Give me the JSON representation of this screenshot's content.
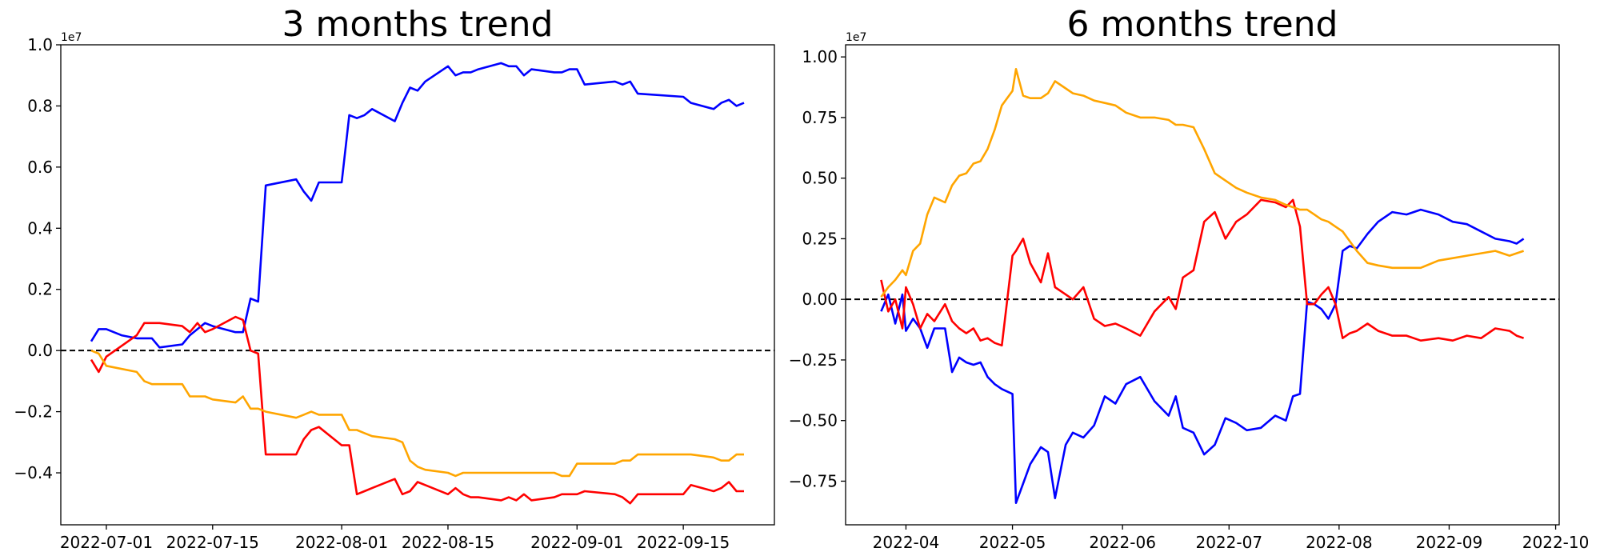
{
  "colors": {
    "series_1": "#0000ff",
    "series_2": "#ff0000",
    "series_3": "#ffa500",
    "zero_line": "#000000"
  },
  "chart_data": [
    {
      "type": "line",
      "title": "3 months trend",
      "xlabel": "",
      "ylabel": "",
      "y_offset_label": "1e7",
      "xlim": [
        "2022-06-25",
        "2022-09-27"
      ],
      "ylim": [
        -0.57,
        1.0
      ],
      "x_ticks": [
        "2022-07-01",
        "2022-07-15",
        "2022-08-01",
        "2022-08-15",
        "2022-09-01",
        "2022-09-15"
      ],
      "y_ticks": [
        -0.4,
        -0.2,
        0.0,
        0.2,
        0.4,
        0.6,
        0.8,
        1.0
      ],
      "y_tick_labels": [
        "−0.4",
        "−0.2",
        "0.0",
        "0.2",
        "0.4",
        "0.6",
        "0.8",
        "1.0"
      ],
      "zero_line": true,
      "grid": false,
      "series": [
        {
          "color": "blue",
          "x": [
            "2022-06-29",
            "2022-06-30",
            "2022-07-01",
            "2022-07-03",
            "2022-07-05",
            "2022-07-06",
            "2022-07-07",
            "2022-07-08",
            "2022-07-11",
            "2022-07-12",
            "2022-07-13",
            "2022-07-14",
            "2022-07-15",
            "2022-07-18",
            "2022-07-19",
            "2022-07-20",
            "2022-07-21",
            "2022-07-22",
            "2022-07-26",
            "2022-07-27",
            "2022-07-28",
            "2022-07-29",
            "2022-08-01",
            "2022-08-02",
            "2022-08-03",
            "2022-08-04",
            "2022-08-05",
            "2022-08-08",
            "2022-08-09",
            "2022-08-10",
            "2022-08-11",
            "2022-08-12",
            "2022-08-15",
            "2022-08-16",
            "2022-08-17",
            "2022-08-18",
            "2022-08-19",
            "2022-08-22",
            "2022-08-23",
            "2022-08-24",
            "2022-08-25",
            "2022-08-26",
            "2022-08-29",
            "2022-08-30",
            "2022-08-31",
            "2022-09-01",
            "2022-09-02",
            "2022-09-06",
            "2022-09-07",
            "2022-09-08",
            "2022-09-09",
            "2022-09-15",
            "2022-09-16",
            "2022-09-19",
            "2022-09-20",
            "2022-09-21",
            "2022-09-22",
            "2022-09-23"
          ],
          "values": [
            0.03,
            0.07,
            0.07,
            0.05,
            0.04,
            0.04,
            0.04,
            0.01,
            0.02,
            0.05,
            0.07,
            0.09,
            0.08,
            0.06,
            0.06,
            0.17,
            0.16,
            0.54,
            0.56,
            0.52,
            0.49,
            0.55,
            0.55,
            0.77,
            0.76,
            0.77,
            0.79,
            0.75,
            0.81,
            0.86,
            0.85,
            0.88,
            0.93,
            0.9,
            0.91,
            0.91,
            0.92,
            0.94,
            0.93,
            0.93,
            0.9,
            0.92,
            0.91,
            0.91,
            0.92,
            0.92,
            0.87,
            0.88,
            0.87,
            0.88,
            0.84,
            0.83,
            0.81,
            0.79,
            0.81,
            0.82,
            0.8,
            0.81
          ]
        },
        {
          "color": "red",
          "x": [
            "2022-06-29",
            "2022-06-30",
            "2022-07-01",
            "2022-07-05",
            "2022-07-06",
            "2022-07-07",
            "2022-07-08",
            "2022-07-11",
            "2022-07-12",
            "2022-07-13",
            "2022-07-14",
            "2022-07-15",
            "2022-07-18",
            "2022-07-19",
            "2022-07-20",
            "2022-07-21",
            "2022-07-22",
            "2022-07-26",
            "2022-07-27",
            "2022-07-28",
            "2022-07-29",
            "2022-08-01",
            "2022-08-02",
            "2022-08-03",
            "2022-08-04",
            "2022-08-05",
            "2022-08-08",
            "2022-08-09",
            "2022-08-10",
            "2022-08-11",
            "2022-08-12",
            "2022-08-15",
            "2022-08-16",
            "2022-08-17",
            "2022-08-18",
            "2022-08-19",
            "2022-08-22",
            "2022-08-23",
            "2022-08-24",
            "2022-08-25",
            "2022-08-26",
            "2022-08-29",
            "2022-08-30",
            "2022-08-31",
            "2022-09-01",
            "2022-09-02",
            "2022-09-06",
            "2022-09-07",
            "2022-09-08",
            "2022-09-09",
            "2022-09-15",
            "2022-09-16",
            "2022-09-19",
            "2022-09-20",
            "2022-09-21",
            "2022-09-22",
            "2022-09-23"
          ],
          "values": [
            -0.03,
            -0.07,
            -0.02,
            0.05,
            0.09,
            0.09,
            0.09,
            0.08,
            0.06,
            0.09,
            0.06,
            0.07,
            0.11,
            0.1,
            0.0,
            -0.01,
            -0.34,
            -0.34,
            -0.29,
            -0.26,
            -0.25,
            -0.31,
            -0.31,
            -0.47,
            -0.46,
            -0.45,
            -0.42,
            -0.47,
            -0.46,
            -0.43,
            -0.44,
            -0.47,
            -0.45,
            -0.47,
            -0.48,
            -0.48,
            -0.49,
            -0.48,
            -0.49,
            -0.47,
            -0.49,
            -0.48,
            -0.47,
            -0.47,
            -0.47,
            -0.46,
            -0.47,
            -0.48,
            -0.5,
            -0.47,
            -0.47,
            -0.44,
            -0.46,
            -0.45,
            -0.43,
            -0.46,
            -0.46
          ]
        },
        {
          "color": "orange",
          "x": [
            "2022-06-29",
            "2022-06-30",
            "2022-07-01",
            "2022-07-05",
            "2022-07-06",
            "2022-07-07",
            "2022-07-08",
            "2022-07-11",
            "2022-07-12",
            "2022-07-13",
            "2022-07-14",
            "2022-07-15",
            "2022-07-18",
            "2022-07-19",
            "2022-07-20",
            "2022-07-21",
            "2022-07-22",
            "2022-07-26",
            "2022-07-27",
            "2022-07-28",
            "2022-07-29",
            "2022-08-01",
            "2022-08-02",
            "2022-08-03",
            "2022-08-04",
            "2022-08-05",
            "2022-08-08",
            "2022-08-09",
            "2022-08-10",
            "2022-08-11",
            "2022-08-12",
            "2022-08-15",
            "2022-08-16",
            "2022-08-17",
            "2022-08-18",
            "2022-08-19",
            "2022-08-22",
            "2022-08-23",
            "2022-08-24",
            "2022-08-25",
            "2022-08-26",
            "2022-08-29",
            "2022-08-30",
            "2022-08-31",
            "2022-09-01",
            "2022-09-02",
            "2022-09-06",
            "2022-09-07",
            "2022-09-08",
            "2022-09-09",
            "2022-09-15",
            "2022-09-16",
            "2022-09-19",
            "2022-09-20",
            "2022-09-21",
            "2022-09-22",
            "2022-09-23"
          ],
          "values": [
            0.0,
            -0.01,
            -0.05,
            -0.07,
            -0.1,
            -0.11,
            -0.11,
            -0.11,
            -0.15,
            -0.15,
            -0.15,
            -0.16,
            -0.17,
            -0.15,
            -0.19,
            -0.19,
            -0.2,
            -0.22,
            -0.21,
            -0.2,
            -0.21,
            -0.21,
            -0.26,
            -0.26,
            -0.27,
            -0.28,
            -0.29,
            -0.3,
            -0.36,
            -0.38,
            -0.39,
            -0.4,
            -0.41,
            -0.4,
            -0.4,
            -0.4,
            -0.4,
            -0.4,
            -0.4,
            -0.4,
            -0.4,
            -0.4,
            -0.41,
            -0.41,
            -0.37,
            -0.37,
            -0.37,
            -0.36,
            -0.36,
            -0.34,
            -0.34,
            -0.34,
            -0.35,
            -0.36,
            -0.36,
            -0.34,
            -0.34
          ]
        }
      ]
    },
    {
      "type": "line",
      "title": "6 months trend",
      "xlabel": "",
      "ylabel": "",
      "y_offset_label": "1e7",
      "xlim": [
        "2022-03-15",
        "2022-10-02"
      ],
      "ylim": [
        -0.93,
        1.05
      ],
      "x_ticks": [
        "2022-04-01",
        "2022-05-01",
        "2022-06-01",
        "2022-07-01",
        "2022-08-01",
        "2022-09-01",
        "2022-10-01"
      ],
      "x_tick_labels": [
        "2022-04",
        "2022-05",
        "2022-06",
        "2022-07",
        "2022-08",
        "2022-09",
        "2022-10"
      ],
      "y_ticks": [
        -0.75,
        -0.5,
        -0.25,
        0.0,
        0.25,
        0.5,
        0.75,
        1.0
      ],
      "y_tick_labels": [
        "−0.75",
        "−0.50",
        "−0.25",
        "0.00",
        "0.25",
        "0.50",
        "0.75",
        "1.00"
      ],
      "zero_line": true,
      "grid": false,
      "series": [
        {
          "color": "blue",
          "x": [
            "2022-03-25",
            "2022-03-27",
            "2022-03-29",
            "2022-03-31",
            "2022-04-01",
            "2022-04-03",
            "2022-04-05",
            "2022-04-07",
            "2022-04-09",
            "2022-04-12",
            "2022-04-14",
            "2022-04-16",
            "2022-04-18",
            "2022-04-20",
            "2022-04-22",
            "2022-04-24",
            "2022-04-26",
            "2022-04-28",
            "2022-05-01",
            "2022-05-02",
            "2022-05-04",
            "2022-05-06",
            "2022-05-09",
            "2022-05-11",
            "2022-05-13",
            "2022-05-16",
            "2022-05-18",
            "2022-05-21",
            "2022-05-24",
            "2022-05-27",
            "2022-05-30",
            "2022-06-02",
            "2022-06-06",
            "2022-06-10",
            "2022-06-14",
            "2022-06-16",
            "2022-06-18",
            "2022-06-21",
            "2022-06-24",
            "2022-06-27",
            "2022-06-30",
            "2022-07-03",
            "2022-07-06",
            "2022-07-10",
            "2022-07-14",
            "2022-07-17",
            "2022-07-19",
            "2022-07-21",
            "2022-07-23",
            "2022-07-25",
            "2022-07-27",
            "2022-07-29",
            "2022-07-31",
            "2022-08-02",
            "2022-08-04",
            "2022-08-06",
            "2022-08-09",
            "2022-08-12",
            "2022-08-16",
            "2022-08-20",
            "2022-08-24",
            "2022-08-29",
            "2022-09-02",
            "2022-09-06",
            "2022-09-10",
            "2022-09-14",
            "2022-09-18",
            "2022-09-20",
            "2022-09-22"
          ],
          "values": [
            -0.05,
            0.02,
            -0.1,
            0.02,
            -0.13,
            -0.08,
            -0.12,
            -0.2,
            -0.12,
            -0.12,
            -0.3,
            -0.24,
            -0.26,
            -0.27,
            -0.26,
            -0.32,
            -0.35,
            -0.37,
            -0.39,
            -0.84,
            -0.76,
            -0.68,
            -0.61,
            -0.63,
            -0.82,
            -0.6,
            -0.55,
            -0.57,
            -0.52,
            -0.4,
            -0.43,
            -0.35,
            -0.32,
            -0.42,
            -0.48,
            -0.4,
            -0.53,
            -0.55,
            -0.64,
            -0.6,
            -0.49,
            -0.51,
            -0.54,
            -0.53,
            -0.48,
            -0.5,
            -0.4,
            -0.39,
            -0.01,
            -0.02,
            -0.04,
            -0.08,
            -0.02,
            0.2,
            0.22,
            0.21,
            0.27,
            0.32,
            0.36,
            0.35,
            0.37,
            0.35,
            0.32,
            0.31,
            0.28,
            0.25,
            0.24,
            0.23,
            0.25
          ]
        },
        {
          "color": "red",
          "x": [
            "2022-03-25",
            "2022-03-27",
            "2022-03-29",
            "2022-03-31",
            "2022-04-01",
            "2022-04-03",
            "2022-04-05",
            "2022-04-07",
            "2022-04-09",
            "2022-04-12",
            "2022-04-14",
            "2022-04-16",
            "2022-04-18",
            "2022-04-20",
            "2022-04-22",
            "2022-04-24",
            "2022-04-26",
            "2022-04-28",
            "2022-05-01",
            "2022-05-02",
            "2022-05-04",
            "2022-05-06",
            "2022-05-09",
            "2022-05-11",
            "2022-05-13",
            "2022-05-16",
            "2022-05-18",
            "2022-05-21",
            "2022-05-24",
            "2022-05-27",
            "2022-05-30",
            "2022-06-02",
            "2022-06-06",
            "2022-06-10",
            "2022-06-14",
            "2022-06-16",
            "2022-06-18",
            "2022-06-21",
            "2022-06-24",
            "2022-06-27",
            "2022-06-30",
            "2022-07-03",
            "2022-07-06",
            "2022-07-10",
            "2022-07-14",
            "2022-07-17",
            "2022-07-19",
            "2022-07-21",
            "2022-07-23",
            "2022-07-25",
            "2022-07-27",
            "2022-07-29",
            "2022-07-31",
            "2022-08-02",
            "2022-08-04",
            "2022-08-06",
            "2022-08-09",
            "2022-08-12",
            "2022-08-16",
            "2022-08-20",
            "2022-08-24",
            "2022-08-29",
            "2022-09-02",
            "2022-09-06",
            "2022-09-10",
            "2022-09-14",
            "2022-09-18",
            "2022-09-20",
            "2022-09-22"
          ],
          "values": [
            0.08,
            -0.05,
            0.0,
            -0.12,
            0.05,
            -0.02,
            -0.12,
            -0.06,
            -0.09,
            -0.02,
            -0.09,
            -0.12,
            -0.14,
            -0.12,
            -0.17,
            -0.16,
            -0.18,
            -0.19,
            0.18,
            0.2,
            0.25,
            0.15,
            0.07,
            0.19,
            0.05,
            0.02,
            0.0,
            0.05,
            -0.08,
            -0.11,
            -0.1,
            -0.12,
            -0.15,
            -0.05,
            0.01,
            -0.04,
            0.09,
            0.12,
            0.32,
            0.36,
            0.25,
            0.32,
            0.35,
            0.41,
            0.4,
            0.38,
            0.41,
            0.3,
            -0.02,
            -0.02,
            0.02,
            0.05,
            -0.02,
            -0.16,
            -0.14,
            -0.13,
            -0.1,
            -0.13,
            -0.15,
            -0.15,
            -0.17,
            -0.16,
            -0.17,
            -0.15,
            -0.16,
            -0.12,
            -0.13,
            -0.15,
            -0.16
          ]
        },
        {
          "color": "orange",
          "x": [
            "2022-03-25",
            "2022-03-27",
            "2022-03-29",
            "2022-03-31",
            "2022-04-01",
            "2022-04-03",
            "2022-04-05",
            "2022-04-07",
            "2022-04-09",
            "2022-04-12",
            "2022-04-14",
            "2022-04-16",
            "2022-04-18",
            "2022-04-20",
            "2022-04-22",
            "2022-04-24",
            "2022-04-26",
            "2022-04-28",
            "2022-05-01",
            "2022-05-02",
            "2022-05-04",
            "2022-05-06",
            "2022-05-09",
            "2022-05-11",
            "2022-05-13",
            "2022-05-16",
            "2022-05-18",
            "2022-05-21",
            "2022-05-24",
            "2022-05-27",
            "2022-05-30",
            "2022-06-02",
            "2022-06-06",
            "2022-06-10",
            "2022-06-14",
            "2022-06-16",
            "2022-06-18",
            "2022-06-21",
            "2022-06-24",
            "2022-06-27",
            "2022-06-30",
            "2022-07-03",
            "2022-07-06",
            "2022-07-10",
            "2022-07-14",
            "2022-07-17",
            "2022-07-19",
            "2022-07-21",
            "2022-07-23",
            "2022-07-25",
            "2022-07-27",
            "2022-07-29",
            "2022-07-31",
            "2022-08-02",
            "2022-08-04",
            "2022-08-06",
            "2022-08-09",
            "2022-08-12",
            "2022-08-16",
            "2022-08-20",
            "2022-08-24",
            "2022-08-29",
            "2022-09-02",
            "2022-09-06",
            "2022-09-10",
            "2022-09-14",
            "2022-09-18",
            "2022-09-20",
            "2022-09-22"
          ],
          "values": [
            0.01,
            0.05,
            0.08,
            0.12,
            0.1,
            0.2,
            0.23,
            0.35,
            0.42,
            0.4,
            0.47,
            0.51,
            0.52,
            0.56,
            0.57,
            0.62,
            0.7,
            0.8,
            0.86,
            0.95,
            0.84,
            0.83,
            0.83,
            0.85,
            0.9,
            0.87,
            0.85,
            0.84,
            0.82,
            0.81,
            0.8,
            0.77,
            0.75,
            0.75,
            0.74,
            0.72,
            0.72,
            0.71,
            0.62,
            0.52,
            0.49,
            0.46,
            0.44,
            0.42,
            0.41,
            0.39,
            0.38,
            0.37,
            0.37,
            0.35,
            0.33,
            0.32,
            0.3,
            0.28,
            0.24,
            0.2,
            0.15,
            0.14,
            0.13,
            0.13,
            0.13,
            0.16,
            0.17,
            0.18,
            0.19,
            0.2,
            0.18,
            0.19,
            0.2
          ]
        }
      ]
    }
  ]
}
